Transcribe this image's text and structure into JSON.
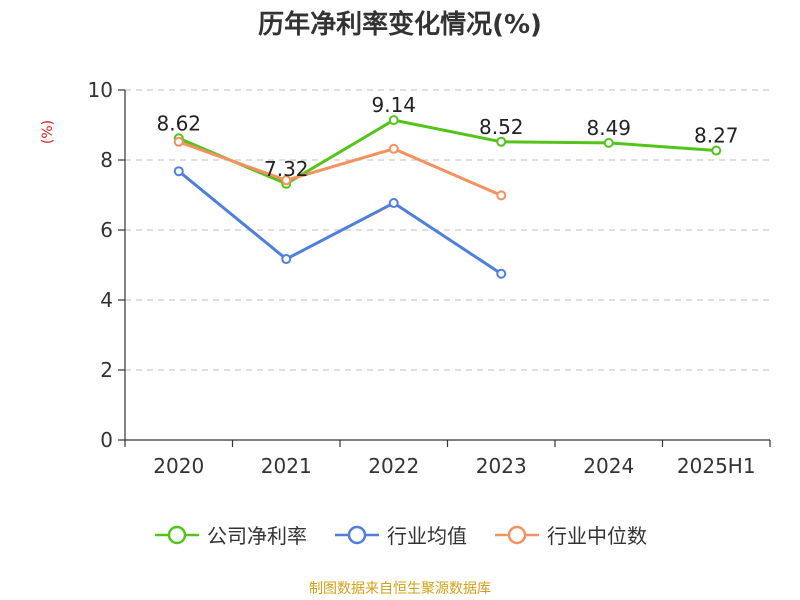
{
  "chart_data": {
    "type": "line",
    "title": "历年净利率变化情况(%)",
    "ylabel": "(%)",
    "xlabel": "",
    "categories": [
      "2020",
      "2021",
      "2022",
      "2023",
      "2024",
      "2025H1"
    ],
    "ylim": [
      0,
      10
    ],
    "yticks": [
      0,
      2,
      4,
      6,
      8,
      10
    ],
    "grid": true,
    "legend_position": "bottom",
    "series": [
      {
        "name": "公司净利率",
        "color": "#52c41a",
        "values": [
          8.62,
          7.32,
          9.14,
          8.52,
          8.49,
          8.27
        ],
        "data_labels": [
          "8.62",
          "7.32",
          "9.14",
          "8.52",
          "8.49",
          "8.27"
        ]
      },
      {
        "name": "行业均值",
        "color": "#4f7fdc",
        "values": [
          7.68,
          5.17,
          6.77,
          4.75,
          null,
          null
        ]
      },
      {
        "name": "行业中位数",
        "color": "#f4915e",
        "values": [
          8.52,
          7.42,
          8.32,
          6.99,
          null,
          null
        ]
      }
    ]
  },
  "footer": {
    "source": "制图数据来自恒生聚源数据库"
  }
}
